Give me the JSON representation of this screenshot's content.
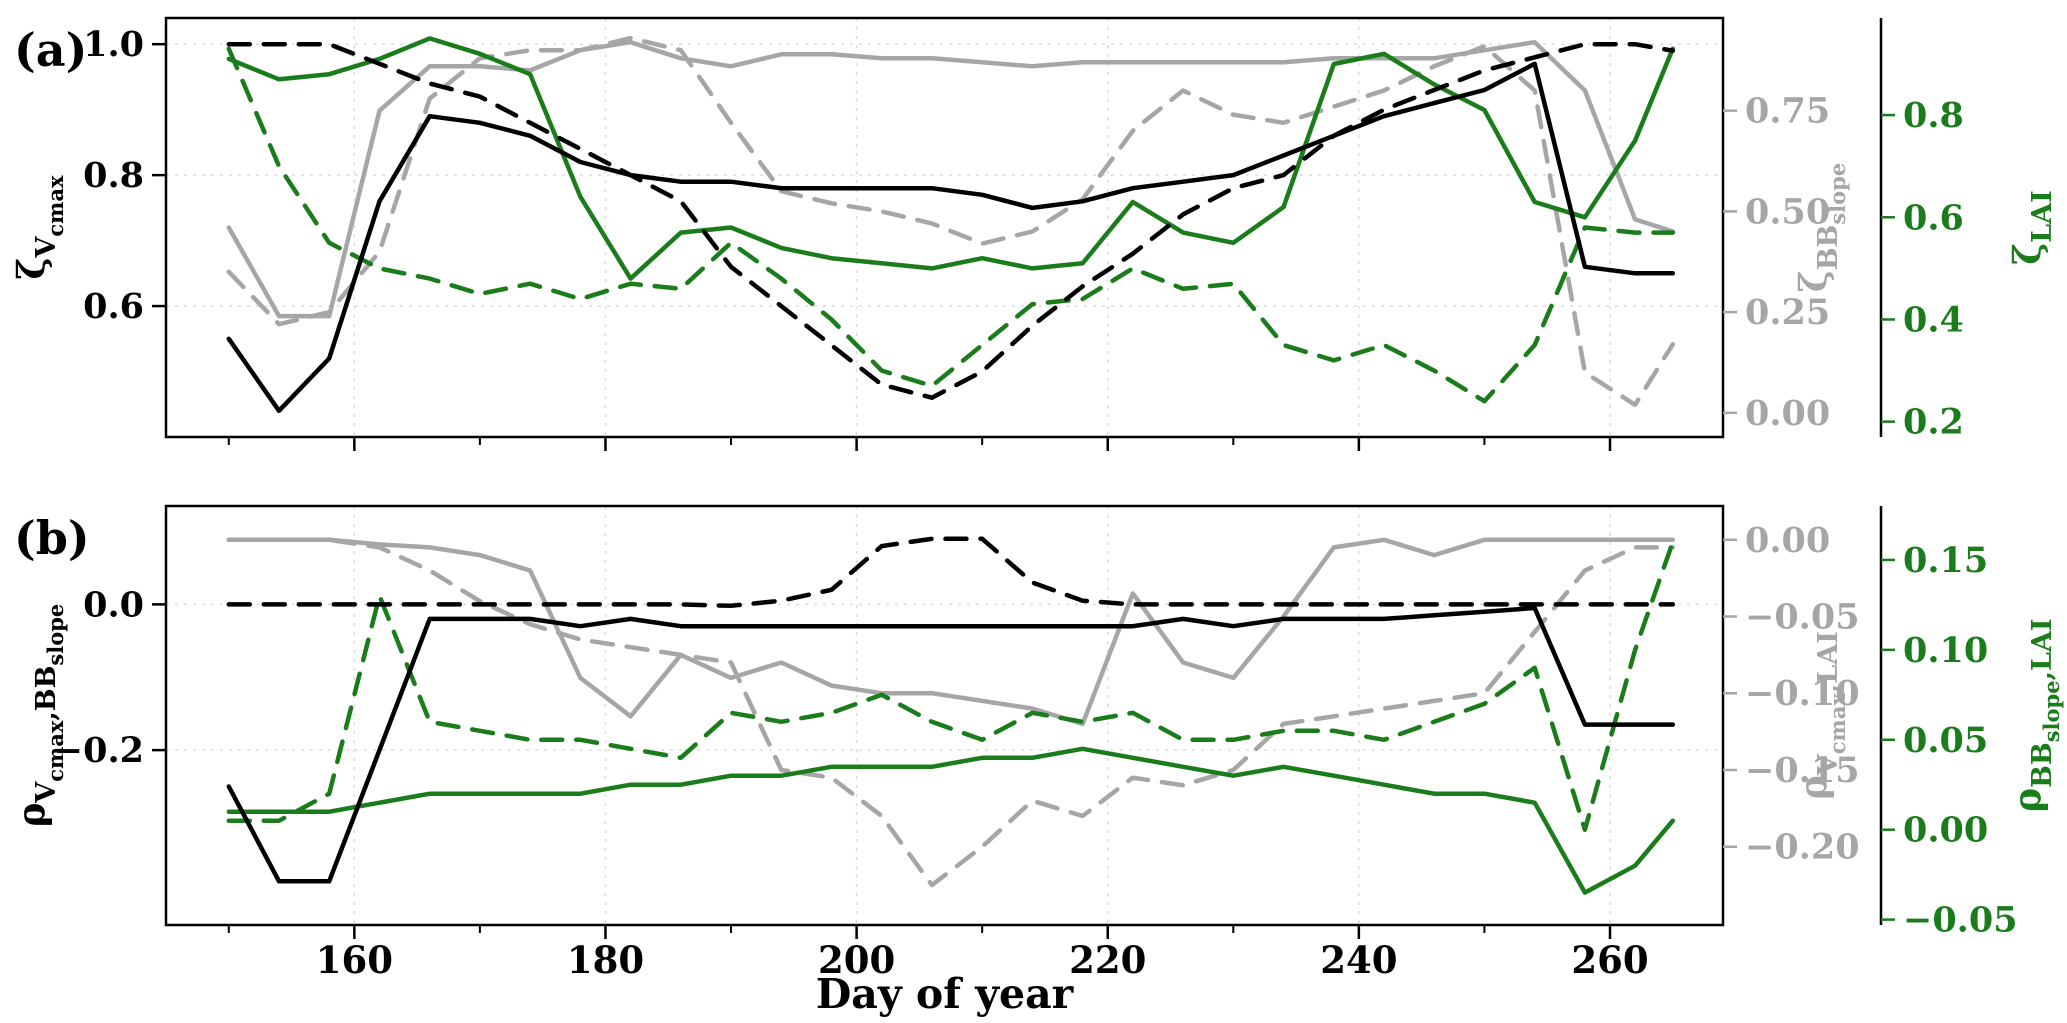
{
  "style": {
    "colors": {
      "black": "#000000",
      "gray": "#a6a6a6",
      "green": "#1b7c1b",
      "grid": "#dcdcdc",
      "background": "#ffffff"
    }
  },
  "figure": {
    "xlabel": "Day of year",
    "panel_tags": [
      "(a)",
      "(b)"
    ]
  },
  "chart_data": [
    {
      "type": "line",
      "panel": "a",
      "tag": "(a)",
      "xlim": [
        145,
        269
      ],
      "x_major_ticks": [
        160,
        180,
        200,
        220,
        240,
        260
      ],
      "x_minor_ticks": [
        150,
        170,
        190,
        210,
        230,
        250
      ],
      "x_tick_labels": null,
      "xlabel": null,
      "x": [
        150,
        154,
        158,
        162,
        166,
        170,
        174,
        178,
        182,
        186,
        190,
        194,
        198,
        202,
        206,
        210,
        214,
        218,
        222,
        226,
        230,
        234,
        238,
        242,
        246,
        250,
        254,
        258,
        262,
        265
      ],
      "axes": {
        "left": {
          "color_key": "black",
          "lim": [
            0.4,
            1.04
          ],
          "ticks": [
            {
              "v": 1.0,
              "t": "1.0"
            },
            {
              "v": 0.8,
              "t": "0.8"
            },
            {
              "v": 0.6,
              "t": "0.6"
            }
          ],
          "label_parts": [
            [
              "ζ",
              0
            ],
            [
              "V",
              1
            ],
            [
              "cmax",
              2
            ]
          ]
        },
        "gray": {
          "color_key": "gray",
          "lim": [
            -0.06,
            0.98
          ],
          "ticks": [
            {
              "v": 0.75,
              "t": "0.75"
            },
            {
              "v": 0.5,
              "t": "0.50"
            },
            {
              "v": 0.25,
              "t": "0.25"
            },
            {
              "v": 0.0,
              "t": "0.00"
            }
          ],
          "label_parts": [
            [
              "ζ",
              0
            ],
            [
              "BB",
              1
            ],
            [
              "slope",
              2
            ]
          ]
        },
        "green": {
          "color_key": "green",
          "lim": [
            0.17,
            0.99
          ],
          "ticks": [
            {
              "v": 0.8,
              "t": "0.8"
            },
            {
              "v": 0.6,
              "t": "0.6"
            },
            {
              "v": 0.4,
              "t": "0.4"
            },
            {
              "v": 0.2,
              "t": "0.2"
            }
          ],
          "label_parts": [
            [
              "ζ",
              0
            ],
            [
              "LAI",
              1
            ]
          ]
        }
      },
      "series": [
        {
          "name": "zeta-BBslope-solid",
          "axis": "gray",
          "color_key": "gray",
          "style": "solid",
          "values": [
            0.46,
            0.24,
            0.24,
            0.75,
            0.86,
            0.86,
            0.85,
            0.9,
            0.92,
            0.88,
            0.86,
            0.89,
            0.89,
            0.88,
            0.88,
            0.87,
            0.86,
            0.87,
            0.87,
            0.87,
            0.87,
            0.87,
            0.88,
            0.88,
            0.88,
            0.9,
            0.92,
            0.8,
            0.48,
            0.45
          ]
        },
        {
          "name": "zeta-BBslope-dashed",
          "axis": "gray",
          "color_key": "gray",
          "style": "dashed",
          "values": [
            0.35,
            0.22,
            0.25,
            0.4,
            0.78,
            0.88,
            0.9,
            0.9,
            0.93,
            0.9,
            0.72,
            0.55,
            0.52,
            0.5,
            0.47,
            0.42,
            0.45,
            0.53,
            0.7,
            0.8,
            0.74,
            0.72,
            0.76,
            0.8,
            0.86,
            0.91,
            0.8,
            0.1,
            0.02,
            0.17
          ]
        },
        {
          "name": "zeta-LAI-solid",
          "axis": "green",
          "color_key": "green",
          "style": "solid",
          "values": [
            0.91,
            0.87,
            0.88,
            0.91,
            0.95,
            0.92,
            0.88,
            0.64,
            0.48,
            0.57,
            0.58,
            0.54,
            0.52,
            0.51,
            0.5,
            0.52,
            0.5,
            0.51,
            0.63,
            0.57,
            0.55,
            0.62,
            0.9,
            0.92,
            0.86,
            0.81,
            0.63,
            0.6,
            0.75,
            0.93
          ]
        },
        {
          "name": "zeta-LAI-dashed",
          "axis": "green",
          "color_key": "green",
          "style": "dashed",
          "values": [
            0.93,
            0.7,
            0.55,
            0.5,
            0.48,
            0.45,
            0.47,
            0.44,
            0.47,
            0.46,
            0.55,
            0.48,
            0.4,
            0.3,
            0.27,
            0.35,
            0.43,
            0.44,
            0.5,
            0.46,
            0.47,
            0.35,
            0.32,
            0.35,
            0.3,
            0.24,
            0.35,
            0.58,
            0.57,
            0.57
          ]
        },
        {
          "name": "zeta-Vcmax-solid",
          "axis": "left",
          "color_key": "black",
          "style": "solid",
          "values": [
            0.55,
            0.44,
            0.52,
            0.76,
            0.89,
            0.88,
            0.86,
            0.82,
            0.8,
            0.79,
            0.79,
            0.78,
            0.78,
            0.78,
            0.78,
            0.77,
            0.75,
            0.76,
            0.78,
            0.79,
            0.8,
            0.83,
            0.86,
            0.89,
            0.91,
            0.93,
            0.97,
            0.66,
            0.65,
            0.65
          ]
        },
        {
          "name": "zeta-Vcmax-dashed",
          "axis": "left",
          "color_key": "black",
          "style": "dashed",
          "values": [
            1.0,
            1.0,
            1.0,
            0.97,
            0.94,
            0.92,
            0.88,
            0.84,
            0.8,
            0.76,
            0.66,
            0.6,
            0.54,
            0.48,
            0.46,
            0.5,
            0.57,
            0.63,
            0.68,
            0.74,
            0.78,
            0.8,
            0.86,
            0.9,
            0.93,
            0.96,
            0.98,
            1.0,
            1.0,
            0.99
          ]
        }
      ]
    },
    {
      "type": "line",
      "panel": "b",
      "tag": "(b)",
      "xlim": [
        145,
        269
      ],
      "x_major_ticks": [
        160,
        180,
        200,
        220,
        240,
        260
      ],
      "x_minor_ticks": [
        150,
        170,
        190,
        210,
        230,
        250
      ],
      "x_tick_labels": [
        "160",
        "180",
        "200",
        "220",
        "240",
        "260"
      ],
      "xlabel": "Day of year",
      "x": [
        150,
        154,
        158,
        162,
        166,
        170,
        174,
        178,
        182,
        186,
        190,
        194,
        198,
        202,
        206,
        210,
        214,
        218,
        222,
        226,
        230,
        234,
        238,
        242,
        246,
        250,
        254,
        258,
        262,
        265
      ],
      "axes": {
        "left": {
          "color_key": "black",
          "lim": [
            -0.44,
            0.135
          ],
          "ticks": [
            {
              "v": 0.0,
              "t": "0.0"
            },
            {
              "v": -0.2,
              "t": "−0.2"
            }
          ],
          "label_parts": [
            [
              "ρ",
              0
            ],
            [
              "V",
              1
            ],
            [
              "cmax",
              2
            ],
            [
              ",BB",
              1
            ],
            [
              "slope",
              2
            ]
          ]
        },
        "gray": {
          "color_key": "gray",
          "lim": [
            -0.251,
            0.022
          ],
          "ticks": [
            {
              "v": 0.0,
              "t": "0.00"
            },
            {
              "v": -0.05,
              "t": "−0.05"
            },
            {
              "v": -0.1,
              "t": "−0.10"
            },
            {
              "v": -0.15,
              "t": "−0.15"
            },
            {
              "v": -0.2,
              "t": "−0.20"
            }
          ],
          "label_parts": [
            [
              "ρ",
              0
            ],
            [
              "V",
              1
            ],
            [
              "cmax",
              2
            ],
            [
              ",LAI",
              1
            ]
          ]
        },
        "green": {
          "color_key": "green",
          "lim": [
            -0.053,
            0.18
          ],
          "ticks": [
            {
              "v": 0.15,
              "t": "0.15"
            },
            {
              "v": 0.1,
              "t": "0.10"
            },
            {
              "v": 0.05,
              "t": "0.05"
            },
            {
              "v": 0.0,
              "t": "0.00"
            },
            {
              "v": -0.05,
              "t": "−0.05"
            }
          ],
          "label_parts": [
            [
              "ρ",
              0
            ],
            [
              "BB",
              1
            ],
            [
              "slope",
              2
            ],
            [
              ",LAI",
              1
            ]
          ]
        }
      },
      "series": [
        {
          "name": "rho-Vcmax-LAI-solid",
          "axis": "gray",
          "color_key": "gray",
          "style": "solid",
          "values": [
            0,
            0,
            0,
            -0.003,
            -0.005,
            -0.01,
            -0.02,
            -0.09,
            -0.115,
            -0.075,
            -0.09,
            -0.08,
            -0.095,
            -0.1,
            -0.1,
            -0.105,
            -0.11,
            -0.12,
            -0.035,
            -0.08,
            -0.09,
            -0.05,
            -0.005,
            0,
            -0.01,
            0,
            0,
            0,
            0,
            0
          ]
        },
        {
          "name": "rho-Vcmax-LAI-dashed",
          "axis": "gray",
          "color_key": "gray",
          "style": "dashed",
          "values": [
            0,
            0,
            0,
            -0.005,
            -0.02,
            -0.04,
            -0.055,
            -0.065,
            -0.07,
            -0.075,
            -0.08,
            -0.15,
            -0.155,
            -0.18,
            -0.225,
            -0.2,
            -0.17,
            -0.18,
            -0.155,
            -0.16,
            -0.15,
            -0.12,
            -0.115,
            -0.11,
            -0.105,
            -0.1,
            -0.06,
            -0.02,
            -0.005,
            -0.005
          ]
        },
        {
          "name": "rho-BBslope-LAI-solid",
          "axis": "green",
          "color_key": "green",
          "style": "solid",
          "values": [
            0.01,
            0.01,
            0.01,
            0.015,
            0.02,
            0.02,
            0.02,
            0.02,
            0.025,
            0.025,
            0.03,
            0.03,
            0.035,
            0.035,
            0.035,
            0.04,
            0.04,
            0.045,
            0.04,
            0.035,
            0.03,
            0.035,
            0.03,
            0.025,
            0.02,
            0.02,
            0.015,
            -0.035,
            -0.02,
            0.005
          ]
        },
        {
          "name": "rho-BBslope-LAI-dashed",
          "axis": "green",
          "color_key": "green",
          "style": "dashed",
          "values": [
            0.005,
            0.005,
            0.02,
            0.13,
            0.06,
            0.055,
            0.05,
            0.05,
            0.045,
            0.04,
            0.065,
            0.06,
            0.065,
            0.075,
            0.06,
            0.05,
            0.065,
            0.06,
            0.065,
            0.05,
            0.05,
            0.055,
            0.055,
            0.05,
            0.06,
            0.07,
            0.09,
            0.0,
            0.1,
            0.16
          ]
        },
        {
          "name": "rho-Vcmax-BBslope-solid",
          "axis": "left",
          "color_key": "black",
          "style": "solid",
          "values": [
            -0.25,
            -0.38,
            -0.38,
            -0.2,
            -0.02,
            -0.02,
            -0.02,
            -0.03,
            -0.02,
            -0.03,
            -0.03,
            -0.03,
            -0.03,
            -0.03,
            -0.03,
            -0.03,
            -0.03,
            -0.03,
            -0.03,
            -0.02,
            -0.03,
            -0.02,
            -0.02,
            -0.02,
            -0.015,
            -0.01,
            -0.005,
            -0.165,
            -0.165,
            -0.165
          ]
        },
        {
          "name": "rho-Vcmax-BBslope-dashed",
          "axis": "left",
          "color_key": "black",
          "style": "dashed",
          "values": [
            0,
            0,
            0,
            0,
            0,
            0,
            0,
            0,
            0,
            0,
            -0.002,
            0.005,
            0.02,
            0.08,
            0.09,
            0.09,
            0.03,
            0.005,
            0,
            0,
            0,
            0,
            0,
            0,
            0,
            0,
            0,
            0,
            0,
            0
          ]
        }
      ]
    }
  ]
}
